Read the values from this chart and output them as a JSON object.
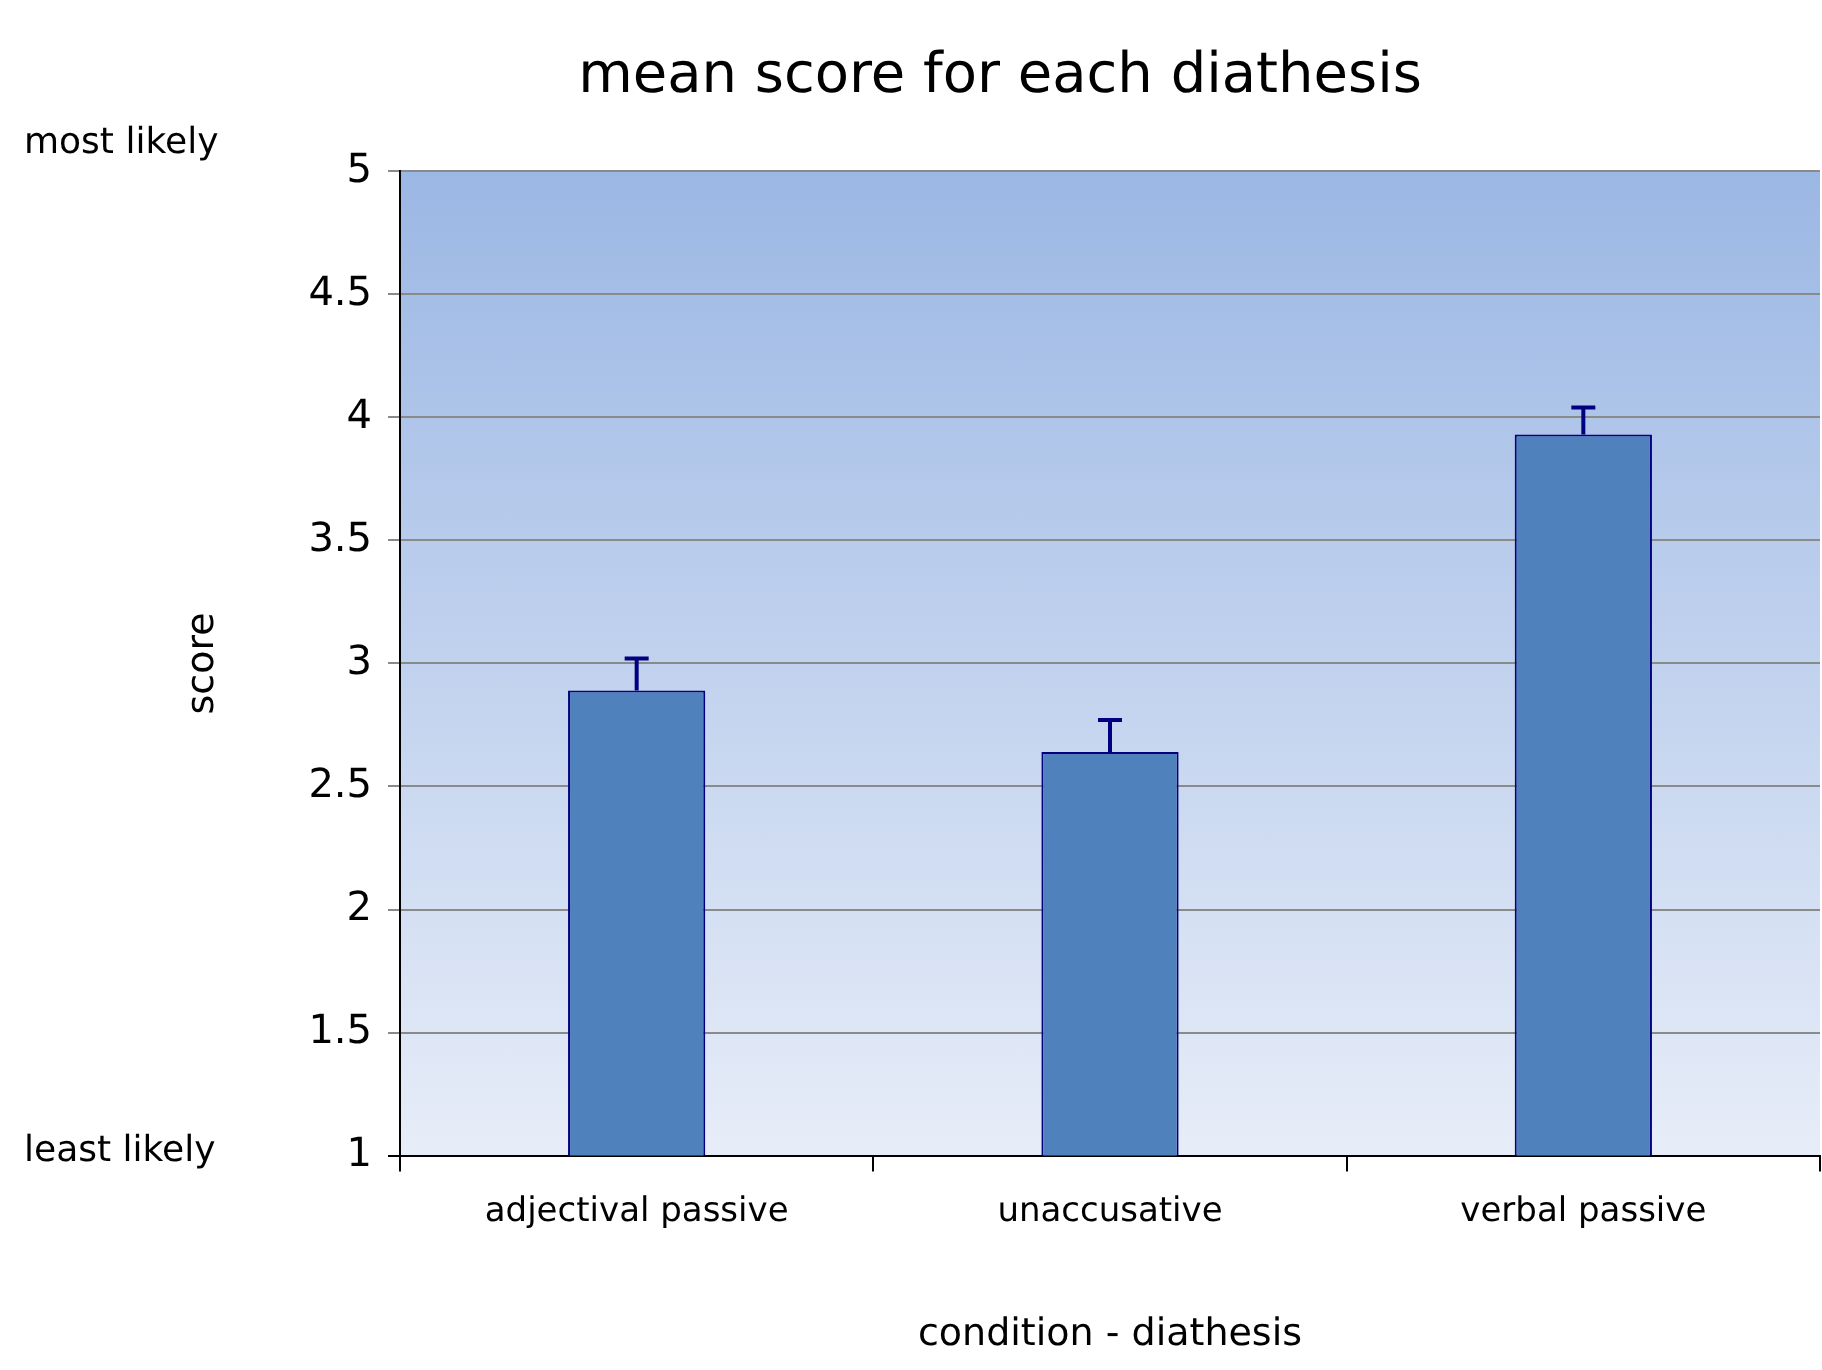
{
  "chart_data": {
    "type": "bar",
    "title": "mean score for each diathesis",
    "xlabel": "condition - diathesis",
    "ylabel": "score",
    "categories": [
      "adjectival passive",
      "unaccusative",
      "verbal passive"
    ],
    "values": [
      2.89,
      2.64,
      3.93
    ],
    "errors": [
      [
        2.89,
        3.02
      ],
      [
        2.64,
        2.77
      ],
      [
        3.93,
        4.04
      ]
    ],
    "color": "#4f81bd",
    "ylim": [
      1,
      5
    ],
    "yticks": [
      1,
      1.5,
      2,
      2.5,
      3,
      3.5,
      4,
      4.5,
      5
    ],
    "grid": "y",
    "legend": false,
    "annotations": [
      "most likely",
      "least likely"
    ]
  }
}
